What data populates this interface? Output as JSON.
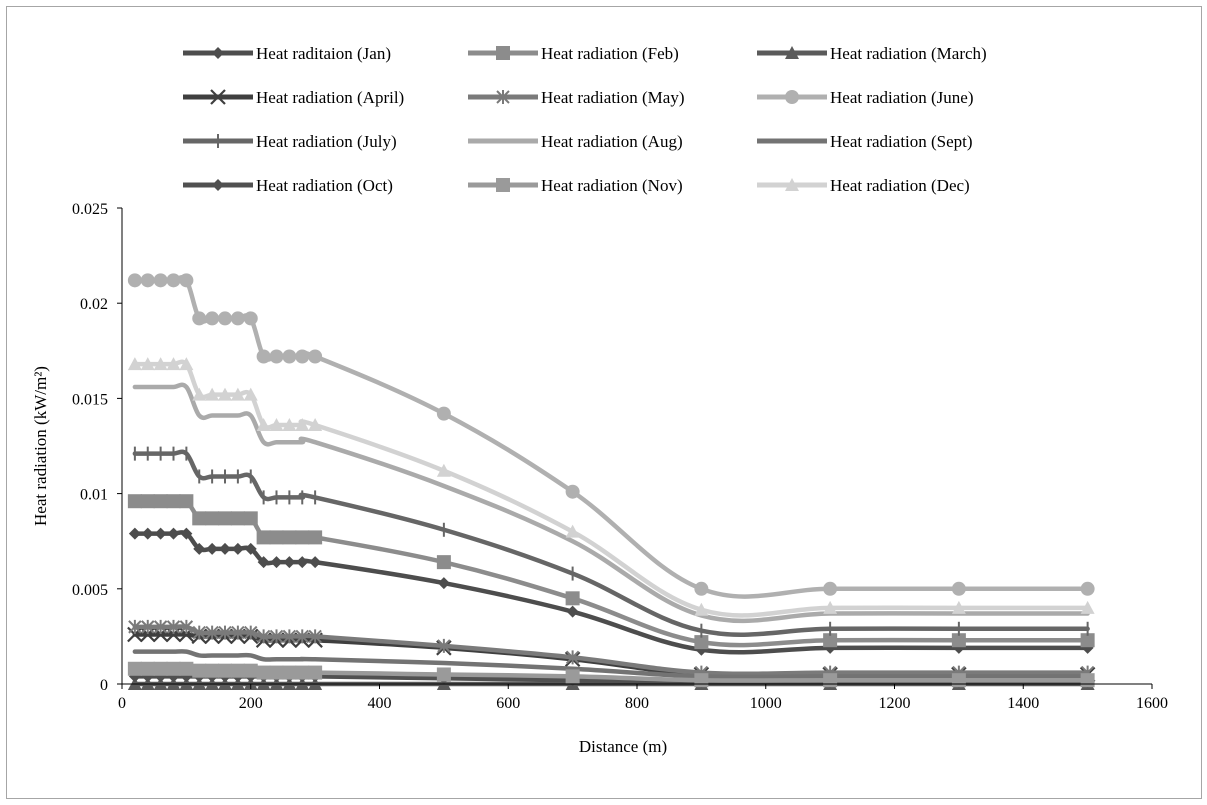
{
  "chart_data": {
    "type": "line",
    "title": "",
    "xlabel": "Distance (m)",
    "ylabel": "Heat radiation (kW/m²)",
    "xlim": [
      0,
      1600
    ],
    "ylim": [
      0,
      0.025
    ],
    "xticks": [
      0,
      200,
      400,
      600,
      800,
      1000,
      1200,
      1400,
      1600
    ],
    "xtick_labels": [
      "0",
      "200",
      "400",
      "600",
      "800",
      "1000",
      "1200",
      "1400",
      "1600"
    ],
    "yticks": [
      0,
      0.005,
      0.01,
      0.015,
      0.02,
      0.025
    ],
    "ytick_labels": [
      "0",
      "0.005",
      "0.01",
      "0.015",
      "0.02",
      "0.025"
    ],
    "grid": false,
    "legend_position": "top",
    "x": [
      20,
      40,
      60,
      80,
      100,
      120,
      140,
      160,
      180,
      200,
      220,
      240,
      260,
      280,
      300,
      500,
      700,
      900,
      1100,
      1300,
      1500
    ],
    "series": [
      {
        "name": "Heat raditaion (Jan)",
        "color": "#4d4d4d",
        "marker": "diamond",
        "values": [
          0.0079,
          0.0079,
          0.0079,
          0.0079,
          0.0079,
          0.0071,
          0.0071,
          0.0071,
          0.0071,
          0.0071,
          0.0064,
          0.0064,
          0.0064,
          0.0064,
          0.0064,
          0.0053,
          0.0038,
          0.0018,
          0.0019,
          0.0019,
          0.0019
        ]
      },
      {
        "name": "Heat radiation (Feb)",
        "color": "#8c8c8c",
        "marker": "square",
        "values": [
          0.0096,
          0.0096,
          0.0096,
          0.0096,
          0.0096,
          0.0087,
          0.0087,
          0.0087,
          0.0087,
          0.0087,
          0.0077,
          0.0077,
          0.0077,
          0.0077,
          0.0077,
          0.0064,
          0.0045,
          0.0022,
          0.0023,
          0.0023,
          0.0023
        ]
      },
      {
        "name": "Heat radiation (March)",
        "color": "#5a5a5a",
        "marker": "triangle",
        "values": [
          0,
          0,
          0,
          0,
          0,
          0,
          0,
          0,
          0,
          0,
          0,
          0,
          0,
          0,
          0,
          0,
          0,
          0,
          0,
          0,
          0
        ]
      },
      {
        "name": "Heat radiation (April)",
        "color": "#3f3f3f",
        "marker": "x",
        "values": [
          0.0026,
          0.0026,
          0.0026,
          0.0026,
          0.0026,
          0.0025,
          0.0025,
          0.0025,
          0.0025,
          0.0025,
          0.0023,
          0.0023,
          0.0023,
          0.0023,
          0.0023,
          0.0019,
          0.0013,
          0.0005,
          0.0005,
          0.0005,
          0.0005
        ]
      },
      {
        "name": "Heat radiation (May)",
        "color": "#7a7a7a",
        "marker": "star",
        "values": [
          0.003,
          0.003,
          0.003,
          0.003,
          0.003,
          0.0027,
          0.0027,
          0.0027,
          0.0027,
          0.0027,
          0.0025,
          0.0025,
          0.0025,
          0.0025,
          0.0025,
          0.002,
          0.0014,
          0.0006,
          0.0006,
          0.0006,
          0.0006
        ]
      },
      {
        "name": "Heat radiation (June)",
        "color": "#b0b0b0",
        "marker": "circle",
        "values": [
          0.0212,
          0.0212,
          0.0212,
          0.0212,
          0.0212,
          0.0192,
          0.0192,
          0.0192,
          0.0192,
          0.0192,
          0.0172,
          0.0172,
          0.0172,
          0.0172,
          0.0172,
          0.0142,
          0.0101,
          0.005,
          0.005,
          0.005,
          0.005
        ]
      },
      {
        "name": "Heat radiation (July)",
        "color": "#666666",
        "marker": "plus",
        "values": [
          0.0121,
          0.0121,
          0.0121,
          0.0121,
          0.0121,
          0.0109,
          0.0109,
          0.0109,
          0.0109,
          0.0109,
          0.0098,
          0.0098,
          0.0098,
          0.0098,
          0.0098,
          0.0081,
          0.0058,
          0.0028,
          0.0029,
          0.0029,
          0.0029
        ]
      },
      {
        "name": "Heat radiation (Aug)",
        "color": "#aaaaaa",
        "marker": "none",
        "values": [
          0.0156,
          0.0156,
          0.0156,
          0.0156,
          0.0156,
          0.0141,
          0.0141,
          0.0141,
          0.0141,
          0.0141,
          0.0127,
          0.0127,
          0.0127,
          0.0127,
          0.0127,
          0.0104,
          0.0075,
          0.0036,
          0.0037,
          0.0037,
          0.0037
        ]
      },
      {
        "name": "Heat radiation (Sept)",
        "color": "#737373",
        "marker": "none",
        "values": [
          0.0017,
          0.0017,
          0.0017,
          0.0017,
          0.0017,
          0.0015,
          0.0015,
          0.0015,
          0.0015,
          0.0015,
          0.0013,
          0.0013,
          0.0013,
          0.0013,
          0.0013,
          0.0011,
          0.0008,
          0.0004,
          0.0004,
          0.0004,
          0.0004
        ]
      },
      {
        "name": "Heat radiation (Oct)",
        "color": "#505050",
        "marker": "diamond",
        "values": [
          0.0004,
          0.0004,
          0.0004,
          0.0004,
          0.0004,
          0.0004,
          0.0004,
          0.0004,
          0.0004,
          0.0004,
          0.0004,
          0.0004,
          0.0004,
          0.0004,
          0.0004,
          0.0003,
          0.0002,
          0.0001,
          0.0001,
          0.0001,
          0.0001
        ]
      },
      {
        "name": "Heat radiation (Nov)",
        "color": "#9a9a9a",
        "marker": "square",
        "values": [
          0.0008,
          0.0008,
          0.0008,
          0.0008,
          0.0008,
          0.0007,
          0.0007,
          0.0007,
          0.0007,
          0.0007,
          0.0006,
          0.0006,
          0.0006,
          0.0006,
          0.0006,
          0.0005,
          0.0004,
          0.0002,
          0.0002,
          0.0002,
          0.0002
        ]
      },
      {
        "name": "Heat radiation (Dec)",
        "color": "#d2d2d2",
        "marker": "triangle",
        "values": [
          0.0168,
          0.0168,
          0.0168,
          0.0168,
          0.0168,
          0.0152,
          0.0152,
          0.0152,
          0.0152,
          0.0152,
          0.0136,
          0.0136,
          0.0136,
          0.0136,
          0.0136,
          0.0112,
          0.008,
          0.0039,
          0.004,
          0.004,
          0.004
        ]
      }
    ]
  }
}
